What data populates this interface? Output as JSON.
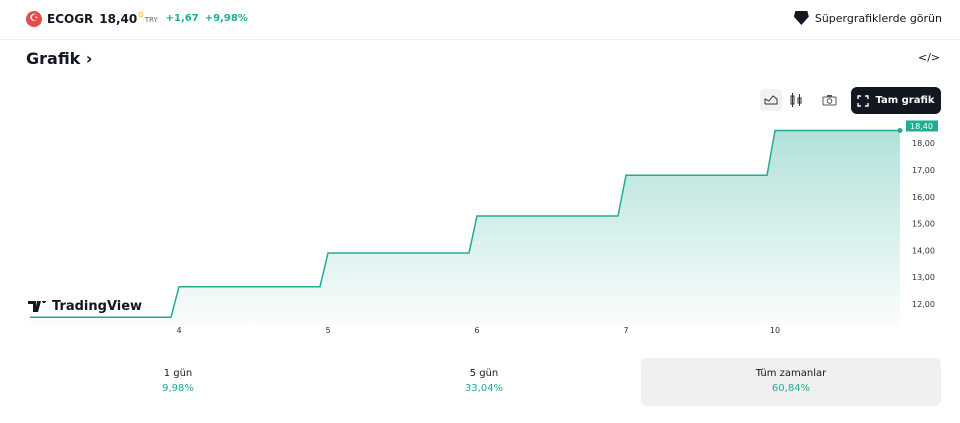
{
  "header": {
    "flag": "☪",
    "symbol": "ECOGR",
    "price": "18,40",
    "price_sup": "G",
    "currency": "TRY",
    "change": "+1,67",
    "change_pct": "+9,98%",
    "supercharts_label": "Süpergrafiklerde görün"
  },
  "section": {
    "title": "Grafik",
    "chevron": "›",
    "embed_icon": "</>"
  },
  "toolbar": {
    "line_icon": "area-chart-icon",
    "candle_icon": "candles-icon",
    "camera_icon": "camera-icon",
    "fullscreen_label": "Tam grafik"
  },
  "logo": "TradingView",
  "colors": {
    "line": "#22ab94",
    "up": "#22ab94"
  },
  "chart_data": {
    "type": "area",
    "x_labels": [
      "",
      "4",
      "5",
      "6",
      "7",
      "10"
    ],
    "values": [
      11.43,
      12.57,
      13.83,
      15.21,
      16.73,
      18.4
    ],
    "last_value_label": "18,40",
    "y_ticks": [
      "12,00",
      "13,00",
      "14,00",
      "15,00",
      "16,00",
      "17,00",
      "18,00"
    ],
    "ylim": [
      11.4,
      18.5
    ],
    "grid": false
  },
  "stats": [
    {
      "label": "1 gün",
      "value": "9,98%"
    },
    {
      "label": "5 gün",
      "value": "33,04%"
    },
    {
      "label": "Tüm zamanlar",
      "value": "60,84%",
      "selected": true
    }
  ]
}
